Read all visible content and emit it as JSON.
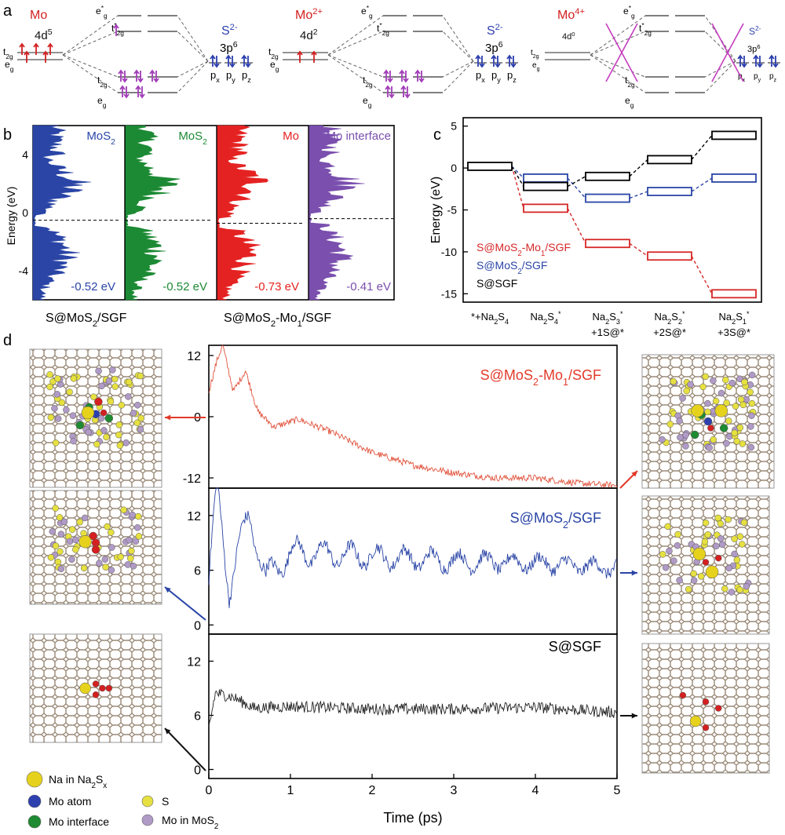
{
  "panel_labels": {
    "a": "a",
    "b": "b",
    "c": "c",
    "d": "d"
  },
  "panel_a": {
    "diagrams": [
      {
        "metal": "Mo",
        "config": "4d",
        "config_sup": "5",
        "color": "#d42020"
      },
      {
        "metal": "Mo",
        "metal_sup": "2+",
        "config": "4d",
        "config_sup": "2",
        "color": "#d42020"
      },
      {
        "metal": "Mo",
        "metal_sup": "4+",
        "config": "4d",
        "config_sup": "0",
        "color": "#d42020"
      }
    ],
    "ligand": "S",
    "ligand_sup": "2-",
    "ligand_config": "3p",
    "ligand_config_sup": "6",
    "t2g": "t",
    "eg": "e",
    "p_labels": [
      "p",
      "p",
      "p"
    ],
    "p_subs": [
      "x",
      "y",
      "z"
    ]
  },
  "panel_b": {
    "ylabel": "Energy (eV)",
    "yticks": [
      "4",
      "0",
      "-4"
    ],
    "columns": [
      {
        "title": "MoS",
        "title_sub": "2",
        "color": "#2a45a6",
        "value": "-0.52 eV"
      },
      {
        "title": "MoS",
        "title_sub": "2",
        "color": "#1c8a34",
        "value": "-0.52 eV"
      },
      {
        "title": "Mo",
        "title_sub": "",
        "color": "#e52222",
        "value": "-0.73 eV"
      },
      {
        "title": "Mo interface",
        "title_sub": "",
        "color": "#7a4fae",
        "value": "-0.41 eV"
      }
    ],
    "bottom_left_label": "S@MoS2/SGF",
    "bottom_right_label": "S@MoS2-Mo1/SGF"
  },
  "chart_data": [
    {
      "type": "line",
      "panel": "b",
      "ylabel": "Energy (eV)",
      "ylim": [
        -6,
        6
      ],
      "fermi_levels": [
        -0.52,
        -0.52,
        -0.73,
        -0.41
      ],
      "series": [
        {
          "name": "MoS2",
          "color": "#2a45a6"
        },
        {
          "name": "MoS2",
          "color": "#1c8a34"
        },
        {
          "name": "Mo",
          "color": "#e52222"
        },
        {
          "name": "Mo interface",
          "color": "#7a4fae"
        }
      ]
    },
    {
      "type": "line",
      "panel": "c",
      "ylabel": "Energy (eV)",
      "ylim": [
        -16,
        5
      ],
      "yticks": [
        5,
        0,
        -5,
        -10,
        -15
      ],
      "categories": [
        "*+Na2S4",
        "Na2S4*",
        "Na2S3*+1S@*",
        "Na2S2*+2S@*",
        "Na2S1*+3S@*"
      ],
      "series": [
        {
          "name": "S@MoS2-Mo1/SGF",
          "color": "#d62828",
          "values": [
            0.2,
            -4.8,
            -9.0,
            -10.5,
            -15.0
          ]
        },
        {
          "name": "S@MoS2/SGF",
          "color": "#2a45a6",
          "values": [
            0.2,
            -1.2,
            -3.6,
            -2.8,
            -1.2
          ]
        },
        {
          "name": "S@SGF",
          "color": "#000000",
          "values": [
            0.2,
            -2.2,
            -1.0,
            1.0,
            3.9
          ]
        }
      ]
    },
    {
      "type": "line",
      "panel": "d",
      "xlabel": "Time (ps)",
      "xlim": [
        0,
        5
      ],
      "xticks": [
        0,
        1,
        2,
        3,
        4,
        5
      ],
      "subplots": [
        {
          "name": "S@MoS2-Mo1/SGF",
          "color": "#e0533c",
          "ylim": [
            -14,
            14
          ],
          "yticks": [
            12,
            0,
            -12
          ],
          "key_points": [
            [
              0,
              5
            ],
            [
              0.1,
              11
            ],
            [
              0.17,
              14
            ],
            [
              0.3,
              5
            ],
            [
              0.45,
              9
            ],
            [
              0.6,
              1
            ],
            [
              0.8,
              -2
            ],
            [
              1.1,
              -0.5
            ],
            [
              1.5,
              -3
            ],
            [
              2,
              -7
            ],
            [
              2.5,
              -9.5
            ],
            [
              3,
              -11
            ],
            [
              3.5,
              -12
            ],
            [
              4,
              -12
            ],
            [
              4.5,
              -13
            ],
            [
              5,
              -13.5
            ]
          ]
        },
        {
          "name": "S@MoS2/SGF",
          "color": "#2a45a6",
          "ylim": [
            -1,
            15
          ],
          "yticks": [
            12,
            6,
            0
          ],
          "key_points": [
            [
              0,
              5
            ],
            [
              0.1,
              15
            ],
            [
              0.25,
              4
            ],
            [
              0.35,
              8
            ],
            [
              0.5,
              12
            ],
            [
              0.7,
              5
            ],
            [
              1,
              8
            ],
            [
              2,
              7.5
            ],
            [
              3,
              7
            ],
            [
              4,
              6.8
            ],
            [
              5,
              6.2
            ]
          ]
        },
        {
          "name": "S@SGF",
          "color": "#222222",
          "ylim": [
            -1,
            15
          ],
          "yticks": [
            12,
            6,
            0
          ],
          "key_points": [
            [
              0,
              4.5
            ],
            [
              0.08,
              8.5
            ],
            [
              0.3,
              8
            ],
            [
              0.55,
              6.8
            ],
            [
              1,
              7
            ],
            [
              2,
              6.7
            ],
            [
              3,
              6.7
            ],
            [
              4,
              6.9
            ],
            [
              5,
              6.3
            ]
          ]
        }
      ]
    }
  ],
  "panel_c": {
    "legend": [
      {
        "label": "S@MoS",
        "sub": "2",
        "label2": "-Mo",
        "sub2": "1",
        "label3": "/SGF",
        "color": "#d62828"
      },
      {
        "label": "S@MoS",
        "sub": "2",
        "label2": "/SGF",
        "sub2": "",
        "label3": "",
        "color": "#2a45a6"
      },
      {
        "label": "S@SGF",
        "sub": "",
        "label2": "",
        "sub2": "",
        "label3": "",
        "color": "#000000"
      }
    ],
    "xcats": [
      [
        "*+Na",
        "2",
        "S",
        "4",
        ""
      ],
      [
        "Na",
        "2",
        "S",
        "4",
        "*"
      ],
      [
        "Na",
        "2",
        "S",
        "3",
        "*"
      ],
      [
        "Na",
        "2",
        "S",
        "2",
        "*"
      ],
      [
        "Na",
        "2",
        "S",
        "1",
        "*"
      ]
    ],
    "xcats_line2": [
      "",
      "",
      "+1S@*",
      "+2S@*",
      "+3S@*"
    ],
    "ytick_labels": [
      "5",
      "0",
      "-5",
      "-10",
      "-15"
    ]
  },
  "panel_d": {
    "titles": [
      {
        "main": "S@MoS",
        "sub": "2",
        "main2": "-Mo",
        "sub2": "1",
        "main3": "/SGF",
        "color": "#e23a2a"
      },
      {
        "main": "S@MoS",
        "sub": "2",
        "main2": "/SGF",
        "sub2": "",
        "main3": "",
        "color": "#2a45a6"
      },
      {
        "main": "S@SGF",
        "sub": "",
        "main2": "",
        "sub2": "",
        "main3": "",
        "color": "#000000"
      }
    ],
    "ytick_labels": [
      [
        "12",
        "0",
        "-12"
      ],
      [
        "12",
        "6",
        "0"
      ],
      [
        "12",
        "6",
        "0"
      ]
    ],
    "xtick_labels": [
      "0",
      "1",
      "2",
      "3",
      "4",
      "5"
    ],
    "xlabel": "Time (ps)",
    "legend": [
      {
        "label": "Na in Na",
        "sub": "2",
        "label2": "S",
        "sub2": "x",
        "color": "#e6d21c",
        "size": "big"
      },
      {
        "label": "Mo atom",
        "color": "#2e3fae",
        "size": "mid"
      },
      {
        "label": "S",
        "color": "#e6e040",
        "size": "small"
      },
      {
        "label": "Mo interface",
        "color": "#1e8a32",
        "size": "mid"
      },
      {
        "label": "Mo in MoS",
        "sub": "2",
        "color": "#b09ac6",
        "size": "small"
      }
    ]
  }
}
